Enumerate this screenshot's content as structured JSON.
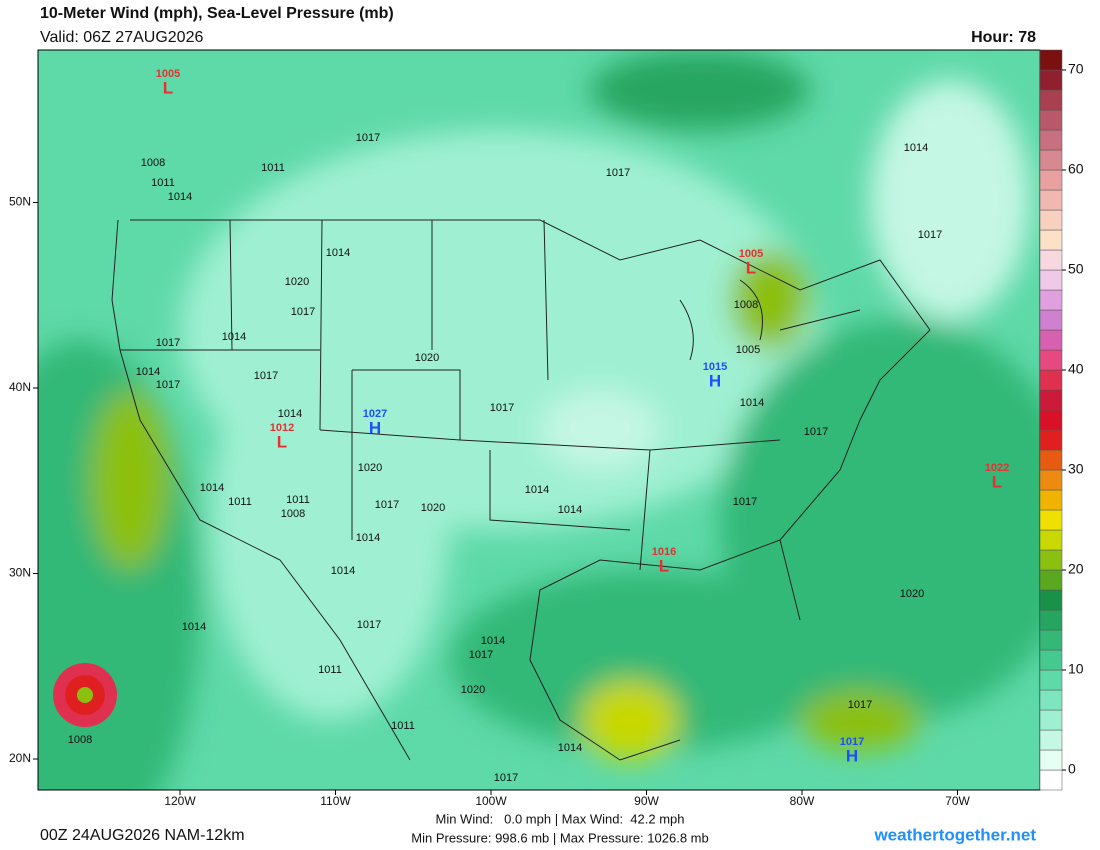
{
  "header": {
    "title": "10-Meter Wind (mph), Sea-Level Pressure (mb)",
    "valid": "Valid: 06Z 27AUG2026",
    "hour": "Hour: 78"
  },
  "colorbar": {
    "lim": [
      -2,
      72
    ],
    "ticks": [
      0,
      10,
      20,
      30,
      40,
      50,
      60,
      70
    ],
    "colors": [
      "#ffffff",
      "#e6fff5",
      "#c4f7e4",
      "#9ff0d2",
      "#7de6c0",
      "#5ed9a8",
      "#45c98f",
      "#33b877",
      "#25a660",
      "#1a9148",
      "#5aa820",
      "#8cc010",
      "#c8d800",
      "#f0e000",
      "#f0b400",
      "#ee8a10",
      "#e85a10",
      "#e02020",
      "#d81028",
      "#cc1a3a",
      "#e03050",
      "#e64880",
      "#d860b0",
      "#d080d0",
      "#e0a0e0",
      "#f0c8e8",
      "#f8d8e0",
      "#fce0c8",
      "#f8d0c0",
      "#f0b8b0",
      "#e8a0a0",
      "#d88890",
      "#c87080",
      "#b85868",
      "#a84050",
      "#902030",
      "#7a1010"
    ]
  },
  "lon_ticks": [
    {
      "value": -120,
      "label": "120W"
    },
    {
      "value": -110,
      "label": "110W"
    },
    {
      "value": -100,
      "label": "100W"
    },
    {
      "value": -90,
      "label": "90W"
    },
    {
      "value": -80,
      "label": "80W"
    },
    {
      "value": -70,
      "label": "70W"
    }
  ],
  "lat_ticks": [
    {
      "value": 50,
      "label": "50N"
    },
    {
      "value": 40,
      "label": "40N"
    },
    {
      "value": 30,
      "label": "30N"
    },
    {
      "value": 20,
      "label": "20N"
    }
  ],
  "isobar_labels": [
    1017,
    1008,
    1011,
    1014,
    1011,
    1017,
    1014,
    1017,
    1014,
    1020,
    1017,
    1014,
    1017,
    1014,
    1017,
    1017,
    1020,
    1008,
    1005,
    1017,
    1014,
    1014,
    1017,
    1020,
    1014,
    1011,
    1011,
    1008,
    1017,
    1020,
    1014,
    1014,
    1017,
    1014,
    1014,
    1020,
    1014,
    1017,
    1014,
    1017,
    1011,
    1020,
    1011,
    1014,
    1017,
    1017,
    1008
  ],
  "centers": [
    {
      "symbol": "L",
      "value": 1005
    },
    {
      "symbol": "L",
      "value": 1012
    },
    {
      "symbol": "H",
      "value": 1027
    },
    {
      "symbol": "L",
      "value": 1005
    },
    {
      "symbol": "H",
      "value": 1015
    },
    {
      "symbol": "L",
      "value": 1022
    },
    {
      "symbol": "L",
      "value": 1016
    },
    {
      "symbol": "H",
      "value": 1017
    }
  ],
  "footer": {
    "run": "00Z 24AUG2026 NAM-12km",
    "wind": "Min Wind:   0.0 mph | Max Wind:  42.2 mph",
    "pressure": "Min Pressure: 998.6 mb | Max Pressure: 1026.8 mb",
    "site": "weathertogether.net"
  }
}
